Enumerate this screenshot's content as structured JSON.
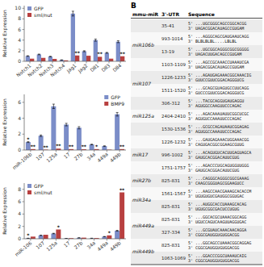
{
  "chart_data": [
    {
      "type": "bar",
      "categories": [
        "Notch1",
        "Notch2",
        "Notch3",
        "Notch4",
        "Jag1",
        "Jag2",
        "Dll1",
        "Dll3",
        "Dll4"
      ],
      "series": [
        {
          "name": "GFP",
          "color": "#7B8DC8",
          "values": [
            1.0,
            1.3,
            0.9,
            0.25,
            9.0,
            1.9,
            4.0,
            1.6,
            3.7
          ],
          "errors": [
            0.05,
            0.065,
            0.045,
            0.0125,
            0.45,
            0.095,
            0.2,
            0.08,
            0.185
          ]
        },
        {
          "name": "sml/nut",
          "color": "#B84040",
          "values": [
            0.5,
            0.65,
            0.45,
            0.18,
            1.1,
            1.05,
            0.85,
            0.5,
            0.95
          ],
          "significance": [
            null,
            null,
            null,
            null,
            "**",
            null,
            "**",
            null,
            "**"
          ]
        }
      ],
      "ylabel": "Relative Expression",
      "ylim": [
        0,
        10.5
      ],
      "yticks": [
        0,
        2,
        4,
        6,
        8,
        10
      ],
      "grid": false,
      "legend": "upper left"
    },
    {
      "type": "bar",
      "categories": [
        "miR-106b",
        "107",
        "125a",
        "17",
        "27b",
        "34a",
        "449a",
        "449b"
      ],
      "series": [
        {
          "name": "GFP",
          "color": "#7B8DC8",
          "values": [
            1.0,
            1.8,
            5.5,
            3.2,
            2.8,
            0.7,
            0.5,
            4.5
          ],
          "errors": [
            0.05,
            0.09,
            0.275,
            0.16,
            0.14,
            0.035,
            0.025,
            0.225
          ],
          "significance": [
            "*",
            null,
            null,
            null,
            null,
            null,
            null,
            null
          ]
        },
        {
          "name": "BMP9",
          "color": "#B84040",
          "values": [
            0.12,
            0.05,
            0.18,
            0.12,
            0.1,
            0.12,
            0.05,
            0.12
          ],
          "significance": [
            "**",
            "**",
            "**",
            "**",
            "**",
            "*",
            null,
            "**"
          ]
        }
      ],
      "ylabel": "Relative Expression",
      "ylim": [
        0,
        7.0
      ],
      "yticks": [
        0,
        2,
        4,
        6
      ],
      "grid": false,
      "legend": "upper right"
    },
    {
      "type": "bar",
      "categories": [
        "miR-106",
        "107",
        "125a",
        "17",
        "27b",
        "34a",
        "449a",
        "449b"
      ],
      "series": [
        {
          "name": "GFP",
          "color": "#7B8DC8",
          "values": [
            0.08,
            0.55,
            0.85,
            0.06,
            0.15,
            0.08,
            0.35,
            1.3
          ],
          "errors": [
            0.004,
            0.0275,
            0.0425,
            0.003,
            0.0075,
            0.004,
            0.0175,
            0.065
          ],
          "significance": [
            "*",
            null,
            null,
            null,
            null,
            null,
            null,
            null
          ]
        },
        {
          "name": "sml/nut",
          "color": "#B84040",
          "values": [
            0.35,
            0.65,
            1.5,
            0.1,
            0.18,
            0.12,
            0.55,
            7.5
          ],
          "significance": [
            null,
            null,
            "*",
            null,
            null,
            null,
            "*",
            "**"
          ]
        }
      ],
      "ylabel": "Relative Expression",
      "ylim": [
        0,
        9.0
      ],
      "yticks": [
        0,
        2,
        4,
        6,
        8
      ],
      "grid": false,
      "legend": "upper left"
    },
    {
      "type": "table",
      "title": "B",
      "columns": [
        "mmu-miR",
        "3'-UTR",
        "Sequence"
      ],
      "groups": [
        {
          "name": "miR106b",
          "rows": [
            {
              "utr": "35-41",
              "seq5": "5' ...UGCGGGCAGCCGGCACGG",
              "seq3": "3' UAGACGGACAUAGCCGUGAM"
            },
            {
              "utr": "993-1014",
              "seq5": "5' ...AGGGCAGCGAUGAAUCAGG",
              "seq3": "3' BLBLBLBL....LBLBL"
            },
            {
              "utr": "13-19",
              "seq5": "5' ...UGCGGCAGGGCGGCGGGGG",
              "seq3": "3' UAGACUUGACAGCCGUGAM"
            },
            {
              "utr": "1103-1109",
              "seq5": "5' ...AGCCGCAAACCUAAAUCGA",
              "seq3": "3' UAGACGGACAUAGCCGUGAM"
            }
          ]
        },
        {
          "name": "miR107",
          "rows": [
            {
              "utr": "1226-1233",
              "seq5": "5' ...AGAUGAGAAACGGCAAACIG",
              "seq3": "3' GUUCCGUUCGGACAGGGUCG"
            },
            {
              "utr": "1511-1520",
              "seq5": "5' ...GCAGCGUAGUGCCUUCAGG",
              "seq3": "3' GUCCCGUUCGGACAGGGUCG"
            }
          ]
        },
        {
          "name": "miR125a",
          "rows": [
            {
              "utr": "306-312",
              "seq5": "5' ...TACGCAGGUGAUGAGGU",
              "seq3": "3' AGUGGCCAAGUUCCCAGAC"
            },
            {
              "utr": "2404-2410",
              "seq5": "5' ...AGACAAAUAUUCGGCUCGC",
              "seq3": "3' AGUGUCCAAAUUCCCAGAC"
            },
            {
              "utr": "1530-1536",
              "seq5": "5' ...GCGCCAGAUAAUCGGAGAG",
              "seq3": "3' AGUGGCCAAAUUCCCAGAC"
            }
          ]
        },
        {
          "name": "miR17",
          "rows": [
            {
              "utr": "1226-1232",
              "seq5": "5' ...GAUGAGAAACUGGAAACGG",
              "seq3": "3' CAGUGACGGCGGAAGCGUUG"
            },
            {
              "utr": "996-1002",
              "seq5": "5' ...ACAGUGUCACUUGAGUAGCA",
              "seq3": "3' GAUGCACGGACAUUCGUG"
            },
            {
              "utr": "1751-1757",
              "seq5": "5' ...AGACCCUGCAGUGGUUGGG",
              "seq3": "3' GAUGCACGGACAUUCGUG"
            }
          ]
        },
        {
          "name": "miR27b",
          "rows": [
            {
              "utr": "825-831",
              "seq5": "5' ...CAGGGCAGGGCGGCGAAAG",
              "seq3": "3' CAAGCGGGUAGCGGAAGUCC"
            }
          ]
        },
        {
          "name": "miR34a",
          "rows": [
            {
              "utr": "1561-1567",
              "seq5": "5' ...AAGCCAACGAAAGCACACCM",
              "seq3": "3' UGUGUGUCGAUGGCGGUGAC"
            },
            {
              "utr": "825-831",
              "seq5": "5' ...AUGGCACCUAAAGCACAG",
              "seq3": "3' UGUGCGGCGACUCCUGUG"
            }
          ]
        },
        {
          "name": "miR449a",
          "rows": [
            {
              "utr": "825-831",
              "seq5": "5' ...GGCACGCUAAACGGCAGG",
              "seq3": "3' UGUCCAGUCAAGUUAGGUGAC"
            },
            {
              "utr": "327-334",
              "seq5": "5' ...GCGUAUCAAACAACAGGA",
              "seq3": "3' CGGCGAUGGUGUGGACGG"
            }
          ]
        },
        {
          "name": "miR449b",
          "rows": [
            {
              "utr": "825-831",
              "seq5": "5' ...GGCAGCCUAAACGGCAGGAG",
              "seq3": "3' CGGCGAUGGUGUGGACGG"
            },
            {
              "utr": "1063-1069",
              "seq5": "5' ...GGACCCGGCUAAAUCAIG",
              "seq3": "3' CGGCGAUGGUGUGGACGG"
            }
          ]
        }
      ]
    }
  ]
}
